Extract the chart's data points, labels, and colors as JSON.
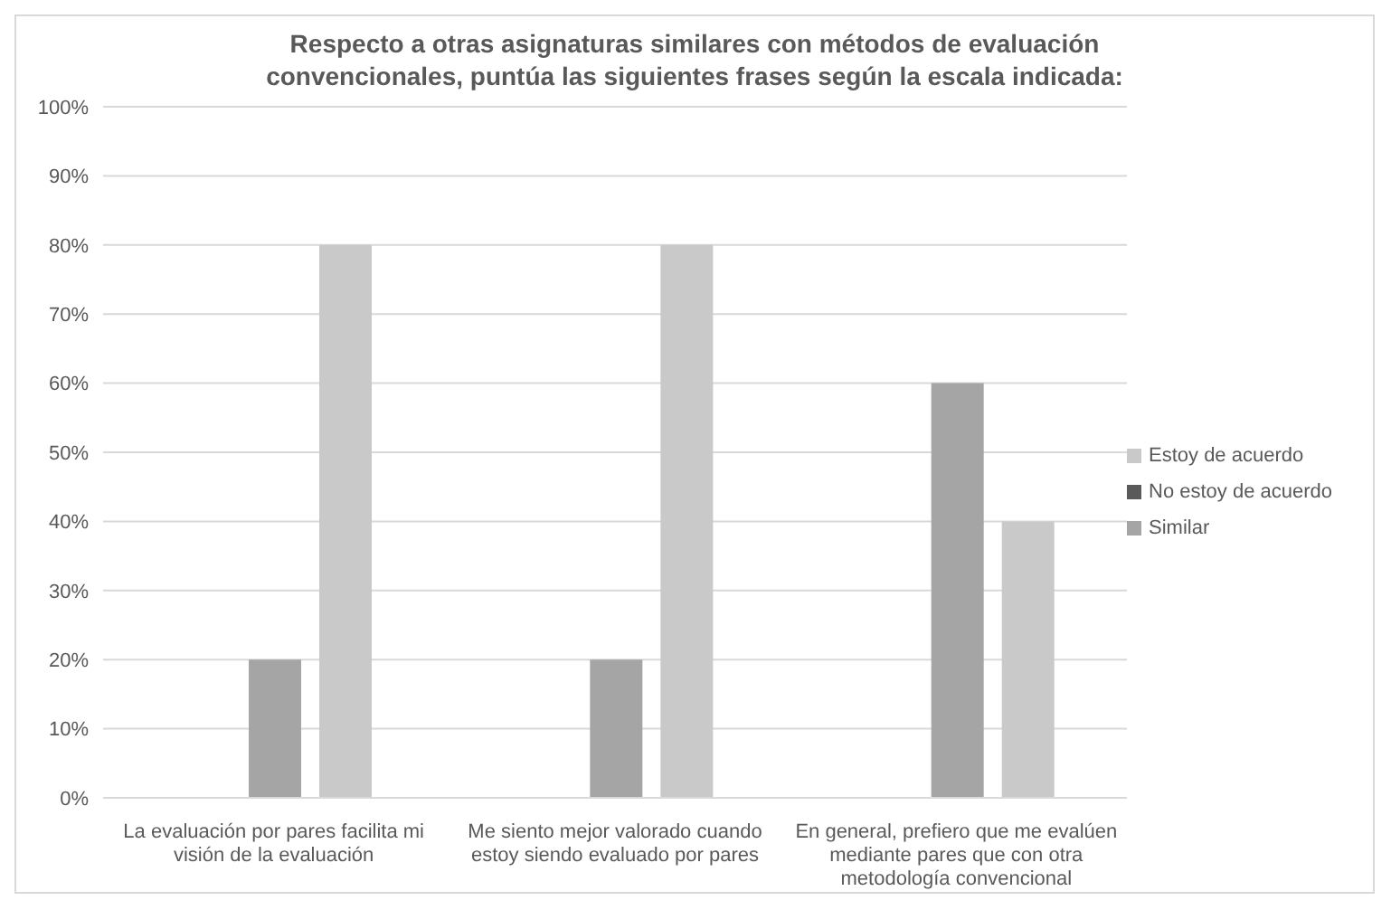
{
  "chart_data": {
    "type": "bar",
    "title": "Respecto a otras asignaturas similares con métodos de evaluación convencionales, puntúa las siguientes frases según la escala indicada:",
    "categories": [
      "La evaluación por pares facilita mi visión de la evaluación",
      "Me siento mejor valorado cuando estoy siendo evaluado por pares",
      "En general, prefiero que me evalúen mediante pares que con otra metodología convencional"
    ],
    "series": [
      {
        "name": "No estoy de acuerdo",
        "color": "#5a5a5a",
        "values": [
          0,
          0,
          0
        ]
      },
      {
        "name": "Similar",
        "color": "#a5a5a5",
        "values": [
          20,
          20,
          60
        ]
      },
      {
        "name": "Estoy de acuerdo",
        "color": "#c9c9c9",
        "values": [
          80,
          80,
          40
        ]
      }
    ],
    "ylim": [
      0,
      100
    ],
    "yticks": [
      {
        "value": 0,
        "label": "0%"
      },
      {
        "value": 10,
        "label": "10%"
      },
      {
        "value": 20,
        "label": "20%"
      },
      {
        "value": 30,
        "label": "30%"
      },
      {
        "value": 40,
        "label": "40%"
      },
      {
        "value": 50,
        "label": "50%"
      },
      {
        "value": 60,
        "label": "60%"
      },
      {
        "value": 70,
        "label": "70%"
      },
      {
        "value": 80,
        "label": "80%"
      },
      {
        "value": 90,
        "label": "90%"
      },
      {
        "value": 100,
        "label": "100%"
      }
    ],
    "grid": "y",
    "legend": "right"
  }
}
